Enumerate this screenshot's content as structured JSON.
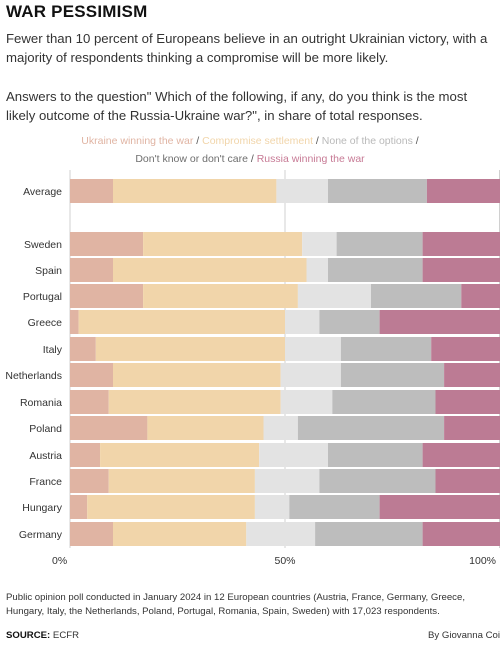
{
  "header": {
    "title": "WAR PESSIMISM",
    "subtitle": "Fewer than 10 percent of Europeans believe in an outright Ukrainian victory, with a majority of respondents thinking a compromise will be more likely.",
    "question": "Answers to the question\" Which of the following, if any, do you think is the most likely outcome of the Russia-Ukraine war?\", in share of total responses."
  },
  "legend": {
    "separator": " / ",
    "items": [
      {
        "label": "Ukraine winning the war",
        "color": "#e0b4a3"
      },
      {
        "label": "Compromise settlement",
        "color": "#f1d5aa"
      },
      {
        "label": "None of the options",
        "color": "#b9b9b9"
      },
      {
        "label": "Don't know or don't care",
        "color": "#6e6e6e"
      },
      {
        "label": "Russia winning the war",
        "color": "#c77a95"
      }
    ]
  },
  "chart_data": {
    "type": "bar",
    "orientation": "horizontal",
    "stacked": true,
    "categories": [
      "Average",
      "Sweden",
      "Spain",
      "Portugal",
      "Greece",
      "Italy",
      "Netherlands",
      "Romania",
      "Poland",
      "Austria",
      "France",
      "Hungary",
      "Germany"
    ],
    "series": [
      {
        "name": "Ukraine winning the war",
        "color": "#e0b4a3",
        "values": [
          10,
          17,
          10,
          17,
          2,
          6,
          10,
          9,
          18,
          7,
          9,
          4,
          10
        ]
      },
      {
        "name": "Compromise settlement",
        "color": "#f1d5aa",
        "values": [
          38,
          37,
          45,
          36,
          48,
          44,
          39,
          40,
          27,
          37,
          34,
          39,
          31
        ]
      },
      {
        "name": "None of the options",
        "color": "#e3e3e3",
        "values": [
          12,
          8,
          5,
          17,
          8,
          13,
          14,
          12,
          8,
          16,
          15,
          8,
          16
        ]
      },
      {
        "name": "Don't know or don't care",
        "color": "#bdbdbd",
        "values": [
          23,
          20,
          22,
          21,
          14,
          21,
          24,
          24,
          34,
          22,
          27,
          21,
          25
        ]
      },
      {
        "name": "Russia winning the war",
        "color": "#bc7b94",
        "values": [
          17,
          18,
          18,
          9,
          28,
          16,
          13,
          15,
          13,
          18,
          15,
          28,
          18
        ]
      }
    ],
    "xlim": [
      0,
      100
    ],
    "xticks": [
      "0%",
      "50%",
      "100%"
    ],
    "grid": true
  },
  "footer": {
    "note": "Public opinion poll conducted in January 2024 in 12 European countries (Austria, France, Germany, Greece, Hungary, Italy, the Netherlands, Poland, Portugal, Romania, Spain, Sweden) with 17,023 respondents.",
    "source_label": "SOURCE:",
    "source_value": " ECFR",
    "credit": "By Giovanna Coi"
  }
}
